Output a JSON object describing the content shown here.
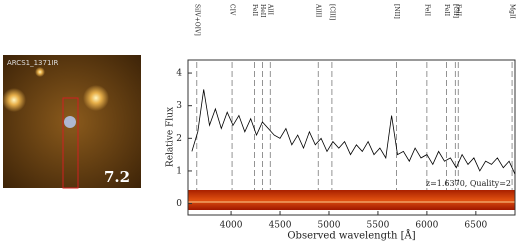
{
  "panel": {
    "label": "ARCS1_1371IR",
    "score": "7.2"
  },
  "chart_data": {
    "type": "line",
    "y_label": "Relative Flux",
    "x_label": "Observed wavelength [Å]",
    "annotation": "z=1.6370, Quality=2",
    "x": [
      3600,
      3660,
      3720,
      3780,
      3840,
      3900,
      3960,
      4020,
      4080,
      4140,
      4200,
      4260,
      4320,
      4380,
      4440,
      4500,
      4560,
      4620,
      4680,
      4740,
      4800,
      4860,
      4920,
      4980,
      5040,
      5100,
      5160,
      5220,
      5280,
      5340,
      5400,
      5460,
      5520,
      5580,
      5640,
      5700,
      5760,
      5820,
      5880,
      5940,
      6000,
      6060,
      6120,
      6180,
      6240,
      6300,
      6360,
      6420,
      6480,
      6540,
      6600,
      6660,
      6720,
      6780,
      6840,
      6900
    ],
    "values": [
      1.6,
      2.2,
      3.5,
      2.4,
      2.9,
      2.3,
      2.8,
      2.4,
      2.7,
      2.2,
      2.6,
      2.1,
      2.5,
      2.3,
      2.1,
      2.0,
      2.3,
      1.8,
      2.1,
      1.7,
      2.2,
      1.8,
      2.0,
      1.6,
      1.9,
      1.7,
      1.9,
      1.5,
      1.8,
      1.6,
      1.9,
      1.5,
      1.7,
      1.4,
      2.7,
      1.5,
      1.6,
      1.3,
      1.7,
      1.4,
      1.5,
      1.2,
      1.6,
      1.3,
      1.4,
      1.1,
      1.5,
      1.2,
      1.4,
      1.0,
      1.3,
      1.2,
      1.4,
      1.1,
      1.3,
      0.9
    ],
    "color": "#000000",
    "xlim": [
      3560,
      6900
    ],
    "ylim": [
      -0.35,
      4.4
    ],
    "xticks": [
      4000,
      4500,
      5000,
      5500,
      6000,
      6500
    ],
    "yticks": [
      0,
      1,
      2,
      3,
      4
    ],
    "lines": [
      {
        "label": "SiIV+OIV]",
        "wavelength": 3650
      },
      {
        "label": "CIV",
        "wavelength": 4010
      },
      {
        "label": "FeII",
        "wavelength": 4240
      },
      {
        "label": "HeII",
        "wavelength": 4320
      },
      {
        "label": "AlII",
        "wavelength": 4400
      },
      {
        "label": "AlIII",
        "wavelength": 4890
      },
      {
        "label": "[CIII]",
        "wavelength": 5030
      },
      {
        "label": "[NII]",
        "wavelength": 5690
      },
      {
        "label": "FeII",
        "wavelength": 6000
      },
      {
        "label": "FeII",
        "wavelength": 6200
      },
      {
        "label": "[CII]",
        "wavelength": 6290
      },
      {
        "label": "FeII",
        "wavelength": 6320
      },
      {
        "label": "MgII",
        "wavelength": 6870
      }
    ]
  }
}
